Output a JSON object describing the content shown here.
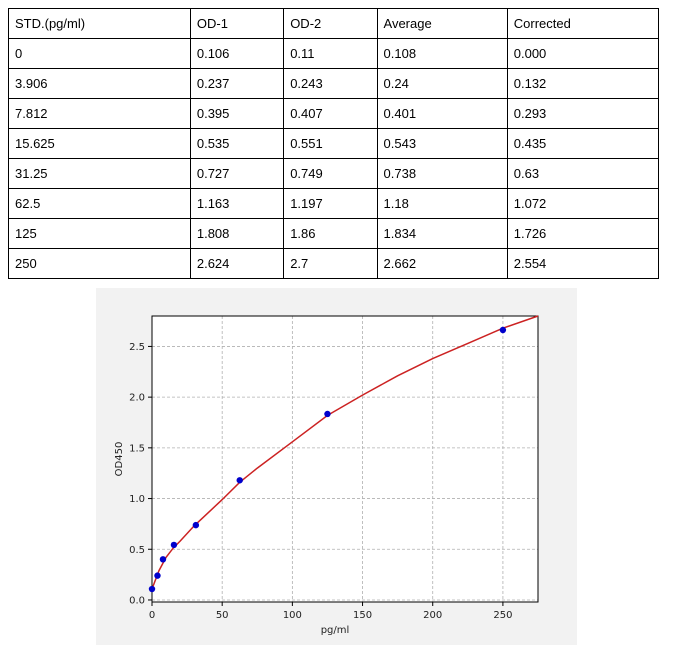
{
  "table": {
    "headers": [
      "STD.(pg/ml)",
      "OD-1",
      "OD-2",
      "Average",
      "Corrected"
    ],
    "rows": [
      [
        "0",
        "0.106",
        "0.11",
        "0.108",
        "0.000"
      ],
      [
        "3.906",
        "0.237",
        "0.243",
        "0.24",
        "0.132"
      ],
      [
        "7.812",
        "0.395",
        "0.407",
        "0.401",
        "0.293"
      ],
      [
        "15.625",
        "0.535",
        "0.551",
        "0.543",
        "0.435"
      ],
      [
        "31.25",
        "0.727",
        "0.749",
        "0.738",
        "0.63"
      ],
      [
        "62.5",
        "1.163",
        "1.197",
        "1.18",
        "1.072"
      ],
      [
        "125",
        "1.808",
        "1.86",
        "1.834",
        "1.726"
      ],
      [
        "250",
        "2.624",
        "2.7",
        "2.662",
        "2.554"
      ]
    ]
  },
  "chart_data": {
    "type": "scatter",
    "xlabel": "pg/ml",
    "ylabel": "OD450",
    "xlim": [
      0,
      275
    ],
    "ylim": [
      -0.02,
      2.8
    ],
    "xticks": [
      0,
      50,
      100,
      150,
      200,
      250
    ],
    "yticks": [
      0.0,
      0.5,
      1.0,
      1.5,
      2.0,
      2.5
    ],
    "grid": true,
    "series": [
      {
        "points": [
          {
            "x": 0,
            "y": 0.108
          },
          {
            "x": 3.906,
            "y": 0.24
          },
          {
            "x": 7.812,
            "y": 0.401
          },
          {
            "x": 15.625,
            "y": 0.543
          },
          {
            "x": 31.25,
            "y": 0.738
          },
          {
            "x": 62.5,
            "y": 1.18
          },
          {
            "x": 125,
            "y": 1.834
          },
          {
            "x": 250,
            "y": 2.662
          }
        ],
        "color": "#0000cc"
      }
    ],
    "fit_curve": {
      "color": "#cc2222",
      "points": [
        {
          "x": 0,
          "y": 0.108
        },
        {
          "x": 5,
          "y": 0.29
        },
        {
          "x": 10,
          "y": 0.42
        },
        {
          "x": 15,
          "y": 0.51
        },
        {
          "x": 20,
          "y": 0.58
        },
        {
          "x": 30,
          "y": 0.73
        },
        {
          "x": 40,
          "y": 0.86
        },
        {
          "x": 50,
          "y": 0.99
        },
        {
          "x": 62.5,
          "y": 1.16
        },
        {
          "x": 75,
          "y": 1.3
        },
        {
          "x": 100,
          "y": 1.56
        },
        {
          "x": 125,
          "y": 1.82
        },
        {
          "x": 150,
          "y": 2.02
        },
        {
          "x": 175,
          "y": 2.21
        },
        {
          "x": 200,
          "y": 2.38
        },
        {
          "x": 225,
          "y": 2.53
        },
        {
          "x": 250,
          "y": 2.68
        },
        {
          "x": 275,
          "y": 2.8
        }
      ]
    }
  }
}
